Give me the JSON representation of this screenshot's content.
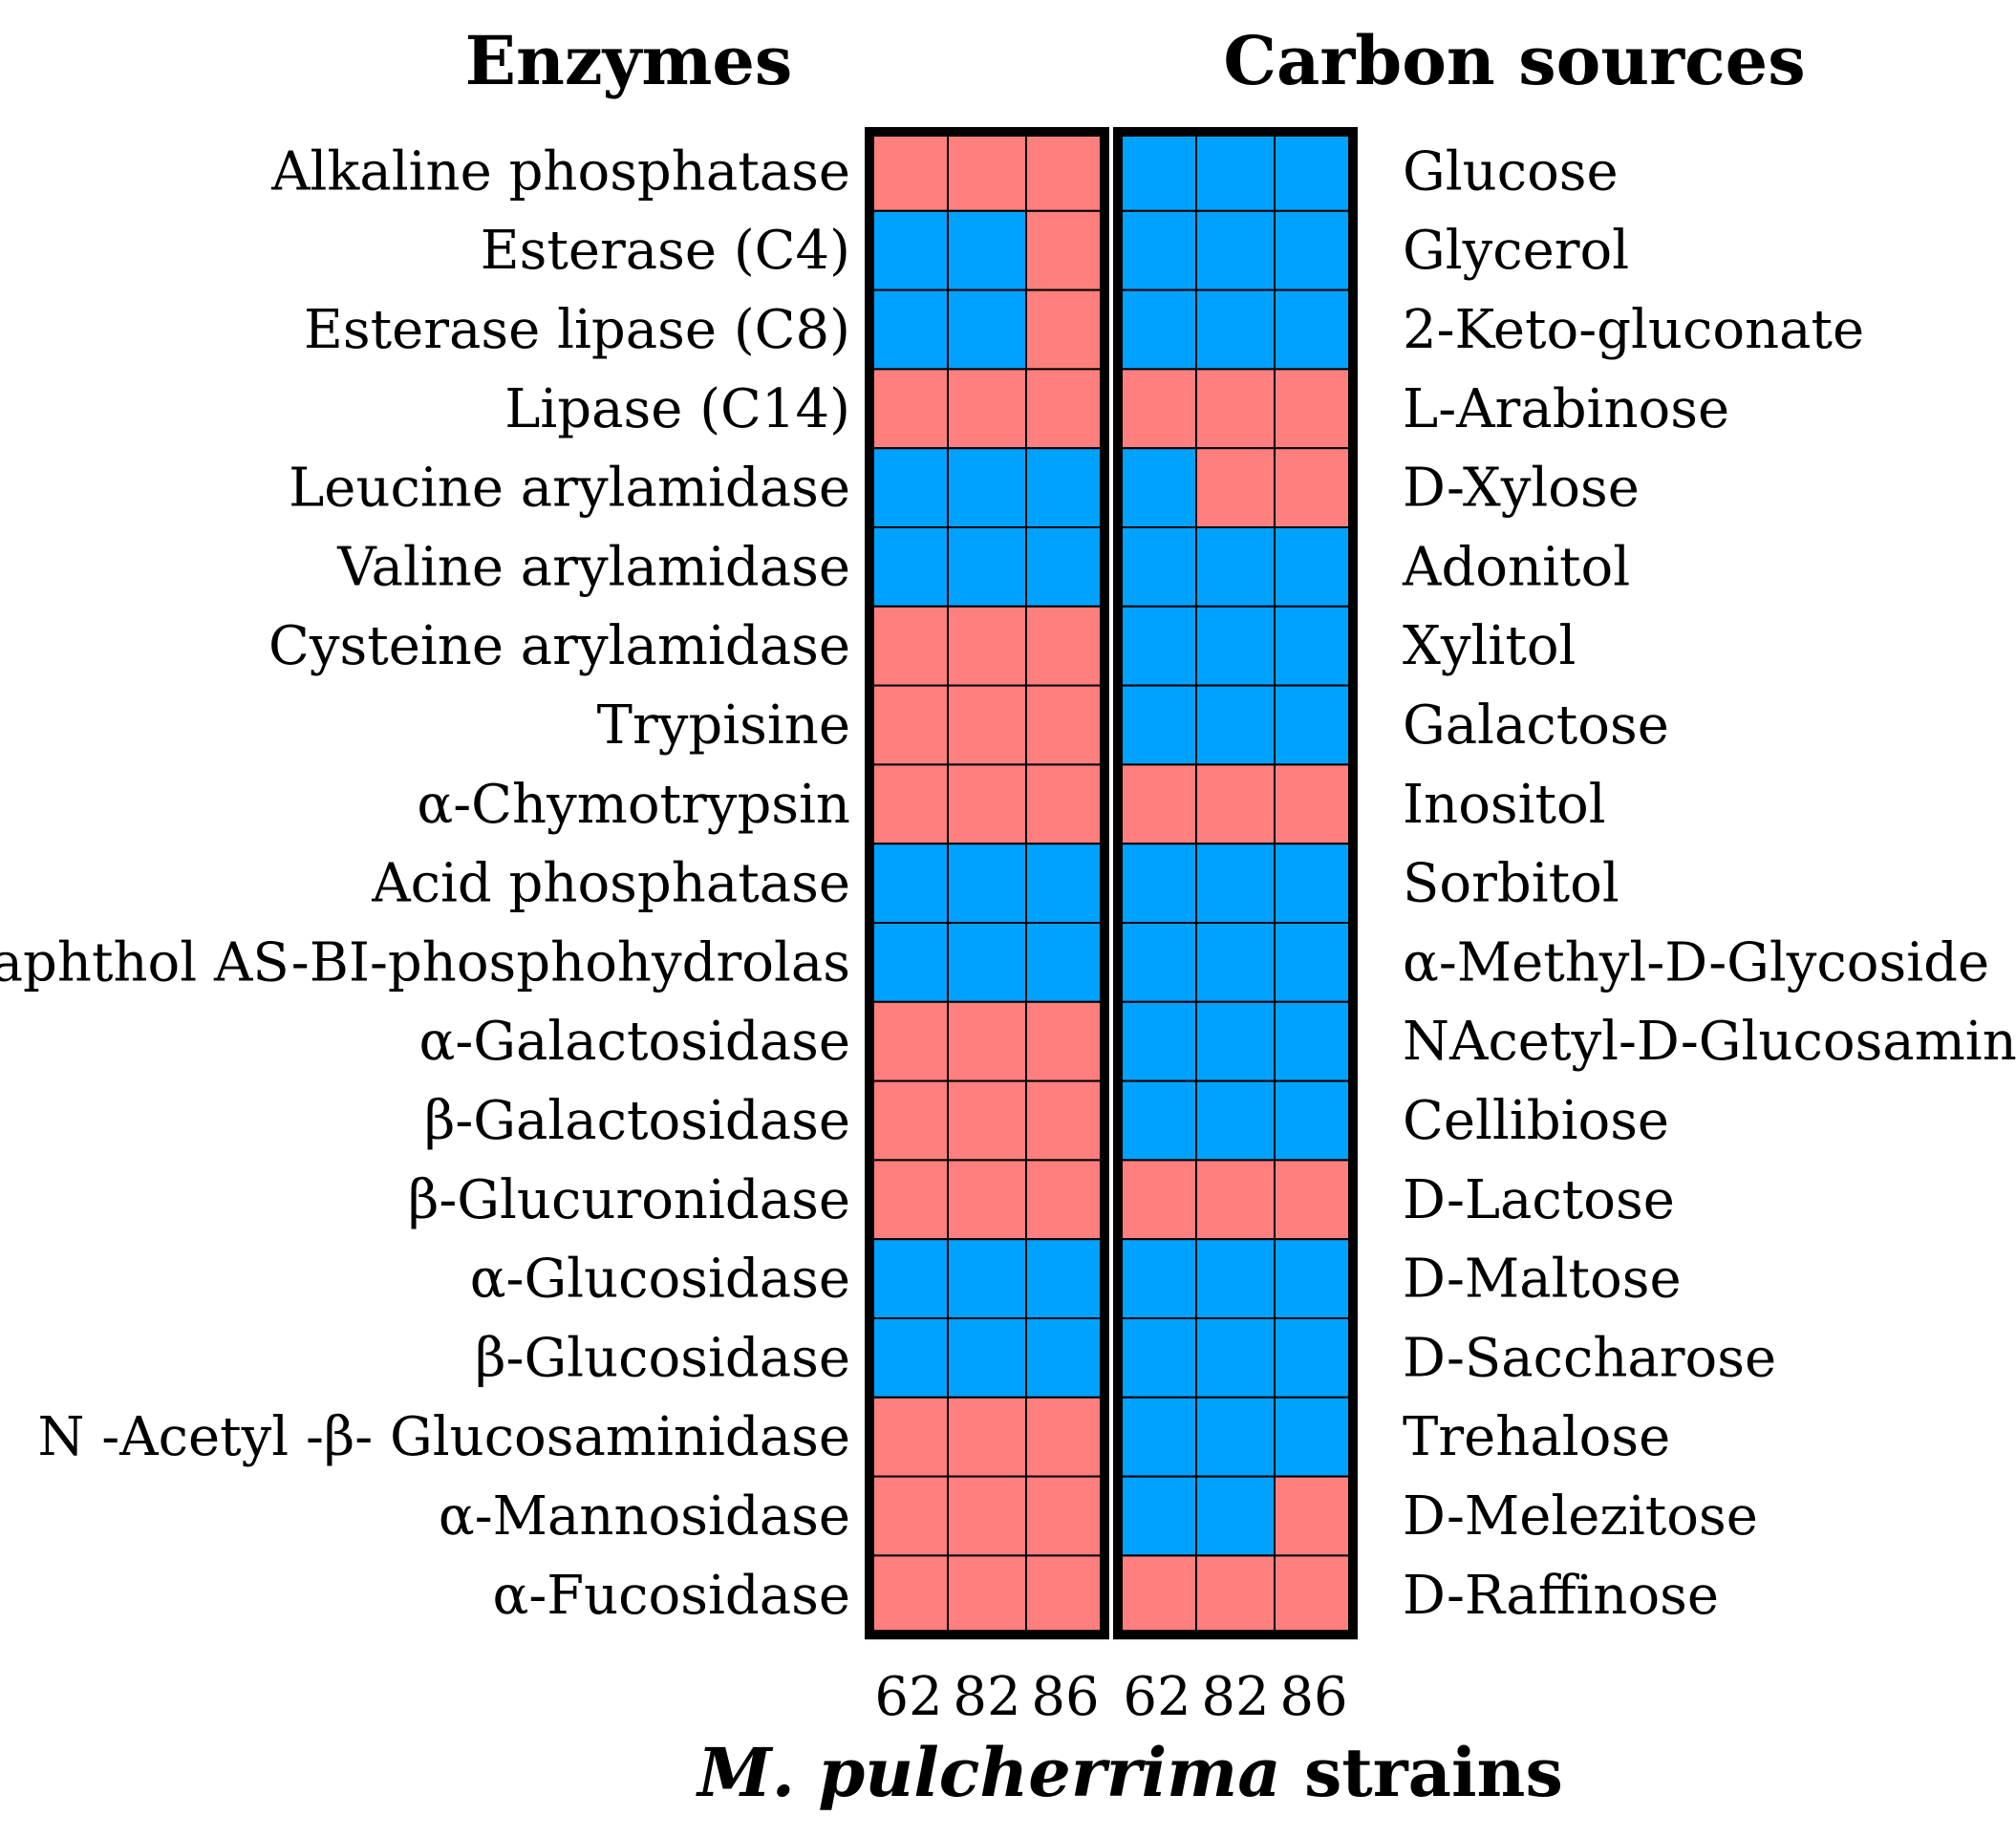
{
  "chart_data": {
    "type": "heatmap",
    "titles": {
      "left": "Enzymes",
      "right": "Carbon sources"
    },
    "xlabel": {
      "italic": "M. pulcherrima",
      "rest": " strains"
    },
    "strains": [
      "62",
      "82",
      "86"
    ],
    "colors": {
      "pos": "#FF7F7F",
      "neg": "#00A2FF",
      "grid": "#000000"
    },
    "legend_note": "",
    "enzymes": {
      "labels": [
        "Alkaline phosphatase",
        "Esterase (C4)",
        "Esterase lipase (C8)",
        "Lipase (C14)",
        "Leucine arylamidase",
        "Valine arylamidase",
        "Cysteine arylamidase",
        "Trypisine",
        "α-Chymotrypsin",
        "Acid phosphatase",
        "Naphthol AS-BI-phosphohydrolas",
        "α-Galactosidase",
        "β-Galactosidase",
        "β-Glucuronidase",
        "α-Glucosidase",
        "β-Glucosidase",
        "N -Acetyl -β- Glucosaminidase",
        "α-Mannosidase",
        "α-Fucosidase"
      ],
      "values": [
        [
          1,
          1,
          1
        ],
        [
          0,
          0,
          1
        ],
        [
          0,
          0,
          1
        ],
        [
          1,
          1,
          1
        ],
        [
          0,
          0,
          0
        ],
        [
          0,
          0,
          0
        ],
        [
          1,
          1,
          1
        ],
        [
          1,
          1,
          1
        ],
        [
          1,
          1,
          1
        ],
        [
          0,
          0,
          0
        ],
        [
          0,
          0,
          0
        ],
        [
          1,
          1,
          1
        ],
        [
          1,
          1,
          1
        ],
        [
          1,
          1,
          1
        ],
        [
          0,
          0,
          0
        ],
        [
          0,
          0,
          0
        ],
        [
          1,
          1,
          1
        ],
        [
          1,
          1,
          1
        ],
        [
          1,
          1,
          1
        ]
      ]
    },
    "carbon_sources": {
      "labels": [
        "Glucose",
        "Glycerol",
        "2-Keto-gluconate",
        "L-Arabinose",
        "D-Xylose",
        "Adonitol",
        "Xylitol",
        "Galactose",
        "Inositol",
        "Sorbitol",
        "α-Methyl-D-Glycoside",
        "NAcetyl-D-Glucosamine",
        "Cellibiose",
        "D-Lactose",
        "D-Maltose",
        "D-Saccharose",
        "Trehalose",
        "D-Melezitose",
        "D-Raffinose"
      ],
      "values": [
        [
          0,
          0,
          0
        ],
        [
          0,
          0,
          0
        ],
        [
          0,
          0,
          0
        ],
        [
          1,
          1,
          1
        ],
        [
          0,
          1,
          1
        ],
        [
          0,
          0,
          0
        ],
        [
          0,
          0,
          0
        ],
        [
          0,
          0,
          0
        ],
        [
          1,
          1,
          1
        ],
        [
          0,
          0,
          0
        ],
        [
          0,
          0,
          0
        ],
        [
          0,
          0,
          0
        ],
        [
          0,
          0,
          0
        ],
        [
          1,
          1,
          1
        ],
        [
          0,
          0,
          0
        ],
        [
          0,
          0,
          0
        ],
        [
          0,
          0,
          0
        ],
        [
          0,
          0,
          1
        ],
        [
          1,
          1,
          1
        ]
      ]
    }
  }
}
